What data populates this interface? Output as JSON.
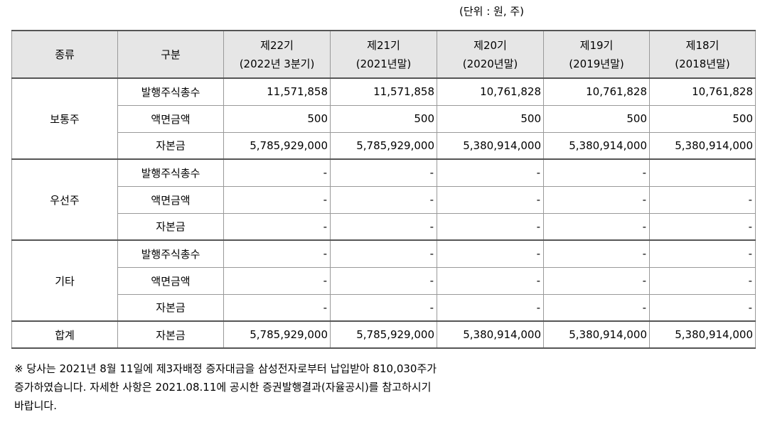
{
  "unit_label": "(단위 : 원, 주)",
  "table": {
    "header_kind": "종류",
    "header_sub": "구분",
    "periods": [
      {
        "name": "제22기",
        "date": "(2022년 3분기)"
      },
      {
        "name": "제21기",
        "date": "(2021년말)"
      },
      {
        "name": "제20기",
        "date": "(2020년말)"
      },
      {
        "name": "제19기",
        "date": "(2019년말)"
      },
      {
        "name": "제18기",
        "date": "(2018년말)"
      }
    ],
    "groups": [
      {
        "kind": "보통주",
        "rows": [
          {
            "label": "발행주식총수",
            "values": [
              "11,571,858",
              "11,571,858",
              "10,761,828",
              "10,761,828",
              "10,761,828"
            ]
          },
          {
            "label": "액면금액",
            "values": [
              "500",
              "500",
              "500",
              "500",
              "500"
            ]
          },
          {
            "label": "자본금",
            "values": [
              "5,785,929,000",
              "5,785,929,000",
              "5,380,914,000",
              "5,380,914,000",
              "5,380,914,000"
            ]
          }
        ]
      },
      {
        "kind": "우선주",
        "rows": [
          {
            "label": "발행주식총수",
            "values": [
              "-",
              "-",
              "-",
              "-",
              ""
            ]
          },
          {
            "label": "액면금액",
            "values": [
              "-",
              "-",
              "-",
              "-",
              "-"
            ]
          },
          {
            "label": "자본금",
            "values": [
              "-",
              "-",
              "-",
              "-",
              "-"
            ]
          }
        ]
      },
      {
        "kind": "기타",
        "rows": [
          {
            "label": "발행주식총수",
            "values": [
              "-",
              "-",
              "-",
              "-",
              "-"
            ]
          },
          {
            "label": "액면금액",
            "values": [
              "-",
              "-",
              "-",
              "-",
              "-"
            ]
          },
          {
            "label": "자본금",
            "values": [
              "-",
              "-",
              "-",
              "-",
              "-"
            ]
          }
        ]
      }
    ],
    "total": {
      "kind": "합계",
      "label": "자본금",
      "values": [
        "5,785,929,000",
        "5,785,929,000",
        "5,380,914,000",
        "5,380,914,000",
        "5,380,914,000"
      ]
    }
  },
  "note": {
    "lines": [
      "※ 당사는 2021년 8월 11일에 제3자배정 증자대금을 삼성전자로부터 납입받아 810,030주가",
      "증가하였습니다. 자세한 사항은 2021.08.11에 공시한 증권발행결과(자율공시)를 참고하시기",
      "바랍니다."
    ]
  }
}
